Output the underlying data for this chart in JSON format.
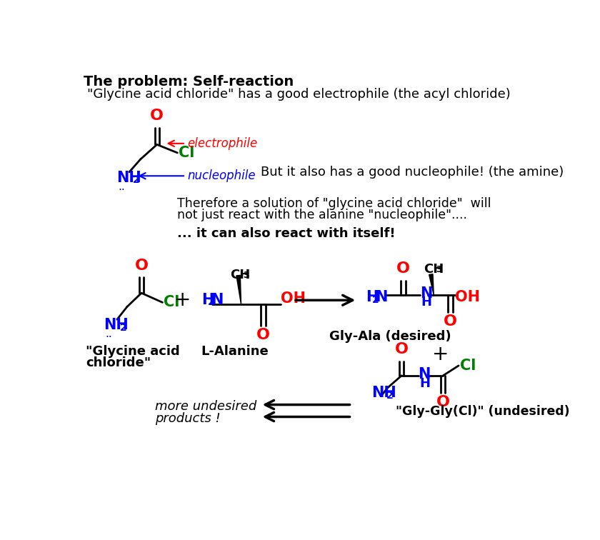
{
  "bg_color": "#ffffff",
  "title": "The problem: Self-reaction",
  "subtitle": "\"Glycine acid chloride\" has a good electrophile (the acyl chloride)",
  "text_black": "#000000",
  "text_red": "#ff0000",
  "text_green": "#008000",
  "text_blue": "#0000ff",
  "figsize": [
    8.4,
    7.56
  ],
  "dpi": 100,
  "top_text1": "Therefore a solution of \"glycine acid chloride\"  will",
  "top_text2": "not just react with the alanine \"nucleophile\"....",
  "bold_text": "... it can also react with itself!",
  "label_gac": "\"Glycine acid chloride\"",
  "label_ala": "L-Alanine",
  "label_gly_ala": "Gly-Ala (desired)",
  "label_gly_gly": "\"Gly-Gly(Cl)\" (undesired)",
  "label_undesired": "more undesired\nproducts !"
}
